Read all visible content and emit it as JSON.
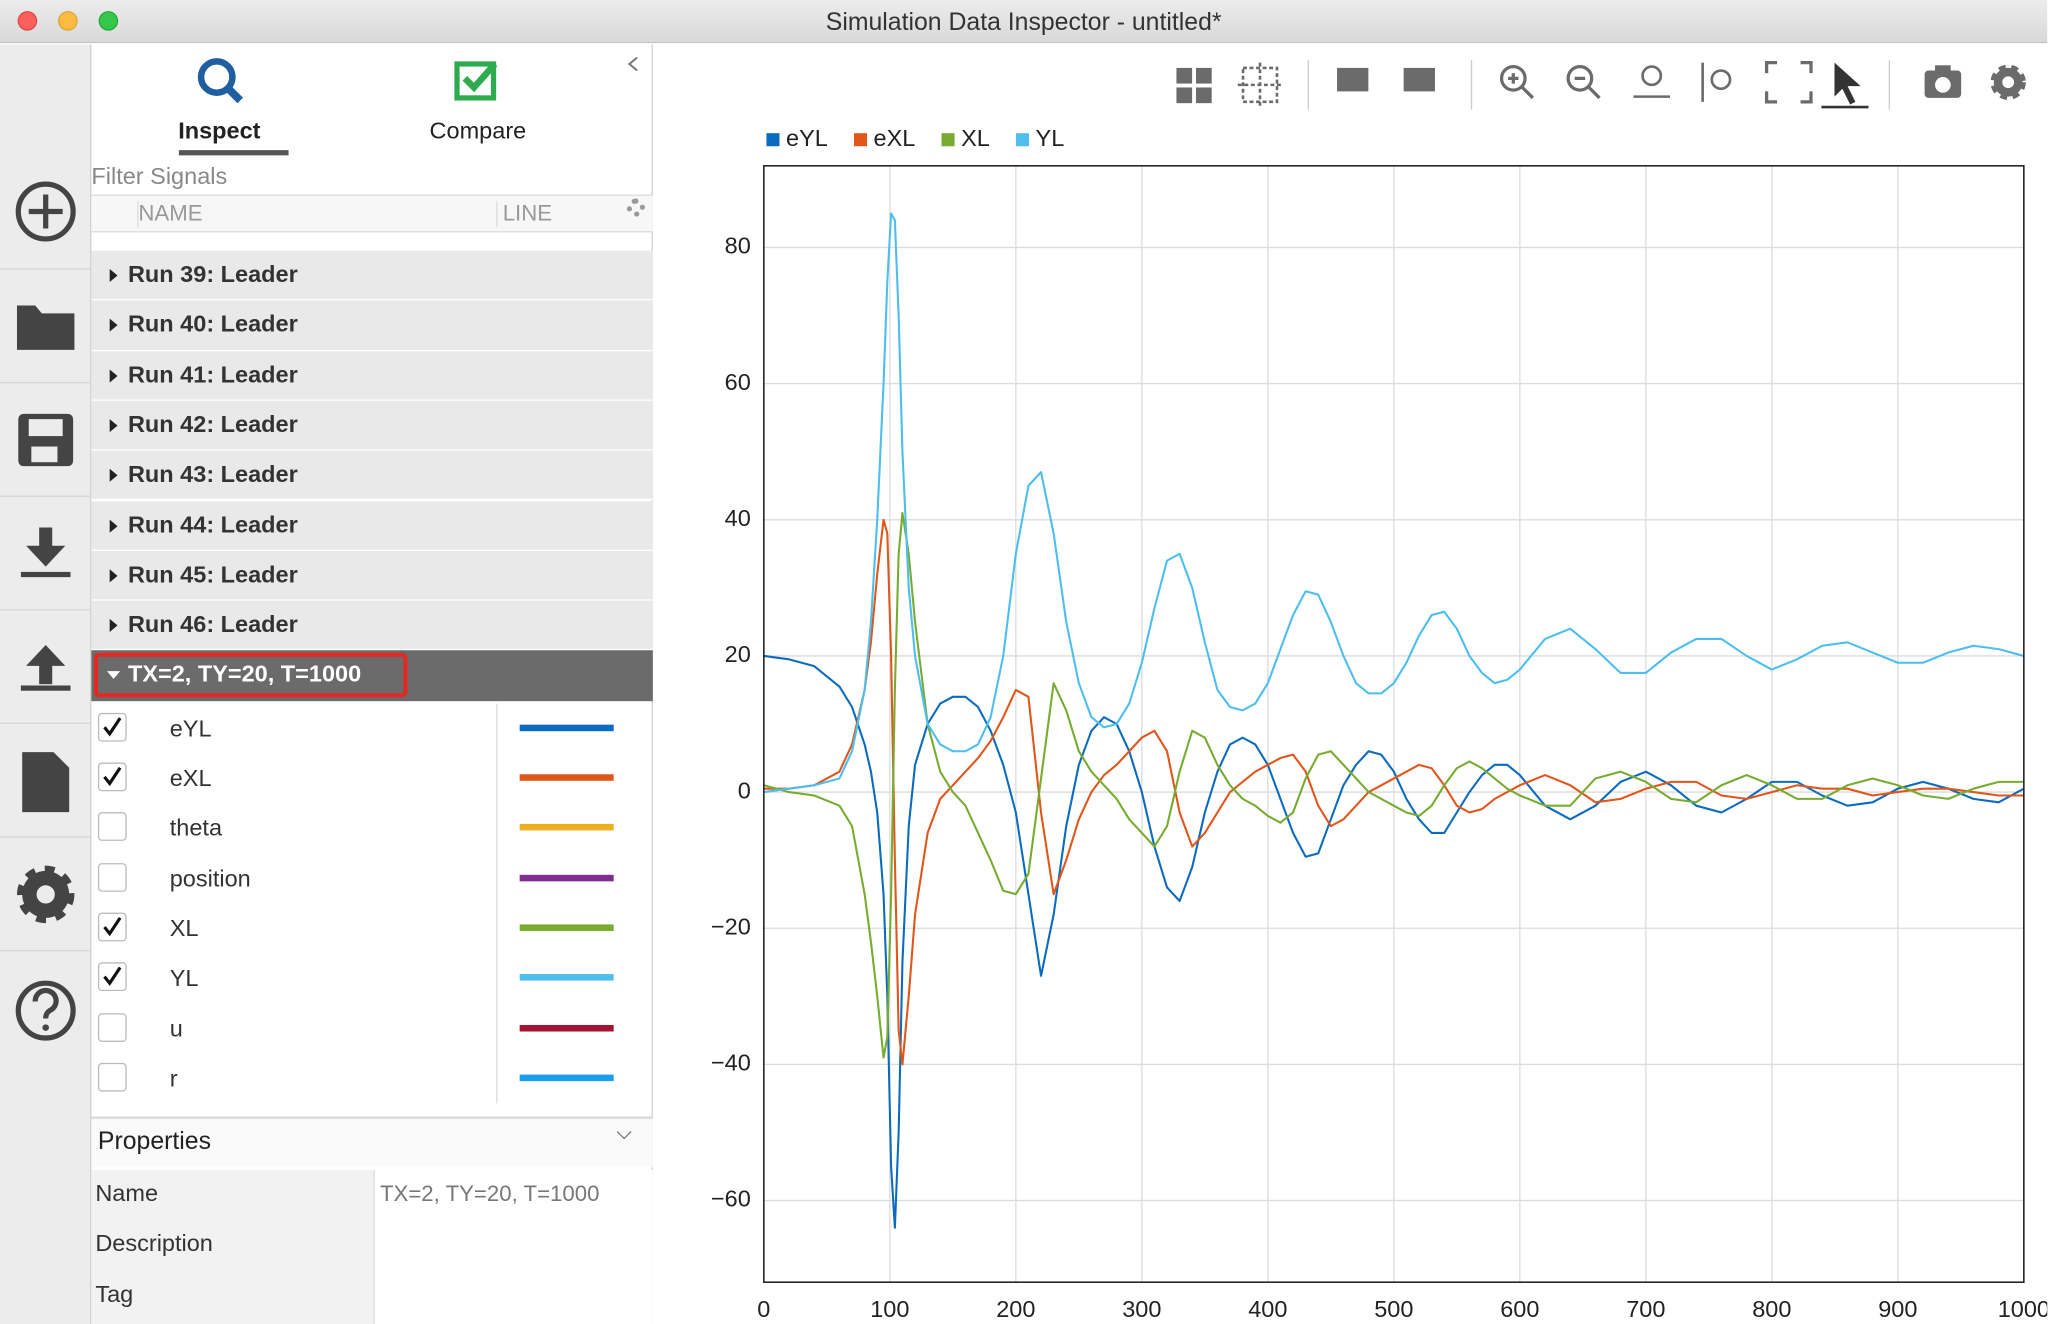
{
  "window": {
    "title": "Simulation Data Inspector - untitled*"
  },
  "sidebar": {
    "tabs": [
      "Inspect",
      "Compare"
    ],
    "filter_placeholder": "Filter Signals",
    "columns": [
      "NAME",
      "LINE"
    ],
    "runs": [
      "Run 39: Leader",
      "Run 40: Leader",
      "Run 41: Leader",
      "Run 42: Leader",
      "Run 43: Leader",
      "Run 44: Leader",
      "Run 45: Leader",
      "Run 46: Leader"
    ],
    "selected_run": "TX=2, TY=20, T=1000",
    "signals": [
      {
        "name": "eYL",
        "checked": true,
        "color": "#0b6cbf"
      },
      {
        "name": "eXL",
        "checked": true,
        "color": "#e0561b"
      },
      {
        "name": "theta",
        "checked": false,
        "color": "#edb120"
      },
      {
        "name": "position",
        "checked": false,
        "color": "#7e2f8e"
      },
      {
        "name": "XL",
        "checked": true,
        "color": "#77ac30"
      },
      {
        "name": "YL",
        "checked": true,
        "color": "#4dbeee"
      },
      {
        "name": "u",
        "checked": false,
        "color": "#a2142f"
      },
      {
        "name": "r",
        "checked": false,
        "color": "#1a9ee8"
      }
    ]
  },
  "properties": {
    "title": "Properties",
    "rows": [
      {
        "label": "Name",
        "value": "TX=2, TY=20, T=1000"
      },
      {
        "label": "Description"
      },
      {
        "label": "Tag"
      }
    ]
  },
  "chart_data": {
    "type": "line",
    "legend": "top-left",
    "grid": true,
    "xlim": [
      0,
      1000
    ],
    "xticks": [
      0,
      100,
      200,
      300,
      400,
      500,
      600,
      700,
      800,
      900,
      1000
    ],
    "ylim": [
      -72,
      92
    ],
    "yticks": [
      {
        "value": -60,
        "label": "−60"
      },
      {
        "value": -40,
        "label": "−40"
      },
      {
        "value": -20,
        "label": "−20"
      },
      0,
      20,
      40,
      60,
      80
    ],
    "x": [
      0,
      20,
      40,
      60,
      70,
      80,
      85,
      90,
      95,
      98,
      101,
      104,
      107,
      110,
      115,
      120,
      130,
      140,
      150,
      160,
      170,
      180,
      190,
      200,
      210,
      220,
      230,
      240,
      250,
      260,
      270,
      280,
      290,
      300,
      310,
      320,
      330,
      340,
      350,
      360,
      370,
      380,
      390,
      400,
      410,
      420,
      430,
      440,
      450,
      460,
      470,
      480,
      490,
      500,
      510,
      520,
      530,
      540,
      550,
      560,
      570,
      580,
      590,
      600,
      620,
      640,
      660,
      680,
      700,
      720,
      740,
      760,
      780,
      800,
      820,
      840,
      860,
      880,
      900,
      920,
      940,
      960,
      980,
      1000
    ],
    "series": [
      {
        "name": "eYL",
        "color": "#0b6cbf",
        "values": [
          20,
          19.5,
          18.5,
          15.5,
          12.5,
          7,
          3,
          -3,
          -15,
          -30,
          -55,
          -64,
          -50,
          -25,
          -5,
          4,
          10,
          13,
          14,
          14,
          12.5,
          9,
          4,
          -3,
          -15,
          -27,
          -18,
          -5,
          4,
          9,
          11,
          10,
          6,
          0,
          -8,
          -14,
          -16,
          -11,
          -3,
          3,
          7,
          8,
          7,
          4,
          -1,
          -6,
          -9.5,
          -9,
          -4,
          1,
          4,
          6,
          5.5,
          3,
          -1,
          -4,
          -6,
          -6,
          -3,
          0,
          2.5,
          4,
          4,
          2.5,
          -2,
          -4,
          -2,
          1.5,
          3,
          1,
          -2,
          -3,
          -1,
          1.5,
          1.5,
          -0.5,
          -2,
          -1.5,
          0.5,
          1.5,
          0.5,
          -1,
          -1.5,
          0.5
        ]
      },
      {
        "name": "eXL",
        "color": "#e0561b",
        "values": [
          0.5,
          0.5,
          1,
          3,
          7,
          15,
          22,
          32,
          40,
          38,
          20,
          -10,
          -35,
          -40,
          -30,
          -18,
          -6,
          -1,
          1,
          3,
          5,
          7.5,
          11,
          15,
          14,
          -3,
          -15,
          -10,
          -4,
          0,
          2.5,
          4,
          6,
          8,
          9,
          6,
          -3,
          -8,
          -6,
          -3,
          0,
          1.5,
          3,
          4,
          5,
          5.5,
          3,
          -2,
          -5,
          -4,
          -2,
          0,
          1,
          2,
          3,
          4,
          3.5,
          1,
          -2,
          -3,
          -2.5,
          -1,
          0,
          1,
          2.5,
          1,
          -1.5,
          -1,
          0.5,
          1.5,
          1.5,
          -0.5,
          -1,
          0,
          1,
          0.5,
          0.5,
          -0.5,
          0,
          0.5,
          0.5,
          0,
          -0.5,
          -0.5
        ]
      },
      {
        "name": "XL",
        "color": "#77ac30",
        "values": [
          1,
          0,
          -0.5,
          -2,
          -5,
          -15,
          -22,
          -30,
          -39,
          -36,
          -15,
          15,
          35,
          41,
          35,
          25,
          10,
          3,
          0,
          -2,
          -6,
          -10,
          -14.5,
          -15,
          -12,
          2,
          16,
          12,
          6,
          3,
          1,
          -1,
          -4,
          -6,
          -8,
          -5,
          3,
          9,
          8,
          4,
          1,
          -1,
          -2,
          -3.5,
          -4.5,
          -3,
          2,
          5.5,
          6,
          4,
          2,
          0,
          -1,
          -2,
          -3,
          -3.5,
          -2,
          1,
          3.5,
          4.5,
          3.5,
          2,
          0.5,
          -0.5,
          -2,
          -2,
          2,
          3,
          1.5,
          -1,
          -1.5,
          1,
          2.5,
          1,
          -1,
          -1,
          1,
          2,
          1,
          -0.5,
          -1,
          0.5,
          1.5,
          1.5
        ]
      },
      {
        "name": "YL",
        "color": "#4dbeee",
        "values": [
          0,
          0.5,
          1,
          2,
          6,
          15,
          25,
          40,
          60,
          75,
          85,
          84,
          70,
          50,
          30,
          20,
          10,
          7,
          6,
          6,
          7,
          11,
          20,
          35,
          45,
          47,
          38,
          25,
          16,
          11,
          9.5,
          10,
          13,
          19,
          27,
          34,
          35,
          30,
          22,
          15,
          12.5,
          12,
          13,
          16,
          21,
          26,
          29.5,
          29,
          25,
          20,
          16,
          14.5,
          14.5,
          16,
          19,
          23,
          26,
          26.5,
          24,
          20,
          17.5,
          16,
          16.5,
          18,
          22.5,
          24,
          21,
          17.5,
          17.5,
          20.5,
          22.5,
          22.5,
          20,
          18,
          19.5,
          21.5,
          22,
          20.5,
          19,
          19,
          20.5,
          21.5,
          21,
          20
        ]
      }
    ]
  }
}
